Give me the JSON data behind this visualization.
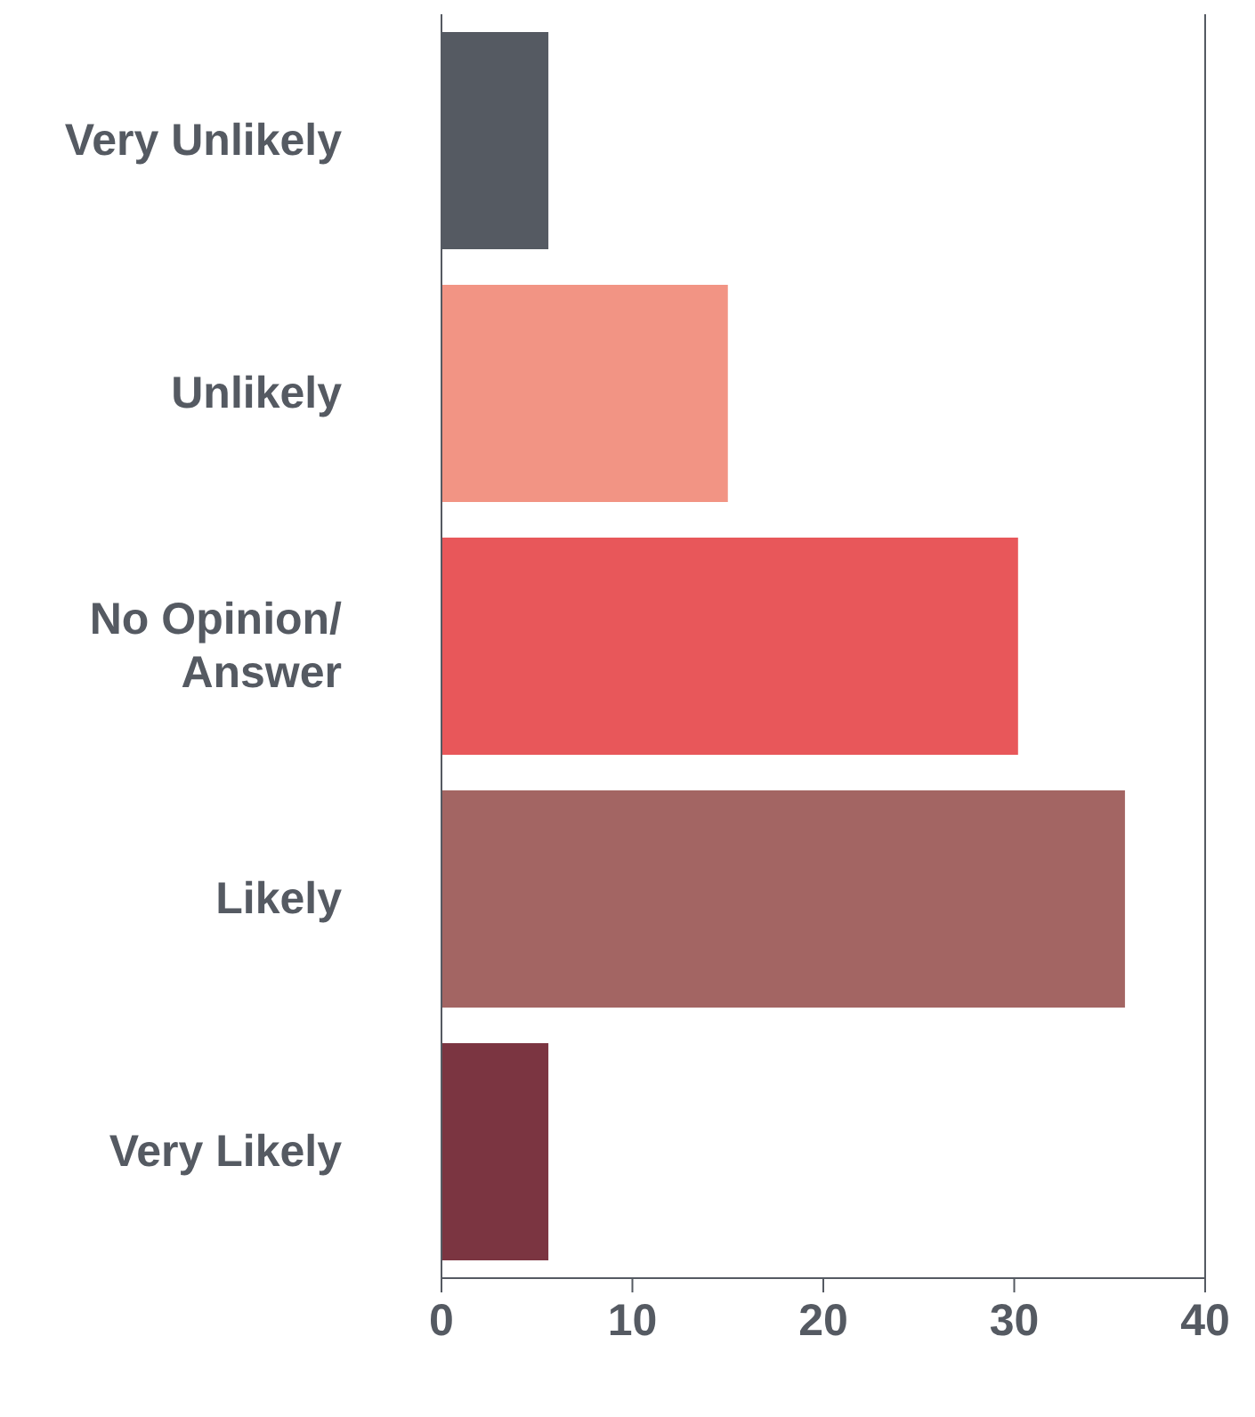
{
  "chart_data": {
    "type": "bar",
    "orientation": "horizontal",
    "categories": [
      "Very Unlikely",
      "Unlikely",
      "No Opinion/ Answer",
      "Likely",
      "Very Likely"
    ],
    "values": [
      5.6,
      15,
      30.2,
      35.8,
      5.6
    ],
    "colors": [
      "#555a62",
      "#f29484",
      "#e8575a",
      "#a36563",
      "#7b3541"
    ],
    "xlim": [
      0,
      40
    ],
    "xticks": [
      0,
      10,
      20,
      30,
      40
    ],
    "grid": false,
    "legend": false
  }
}
